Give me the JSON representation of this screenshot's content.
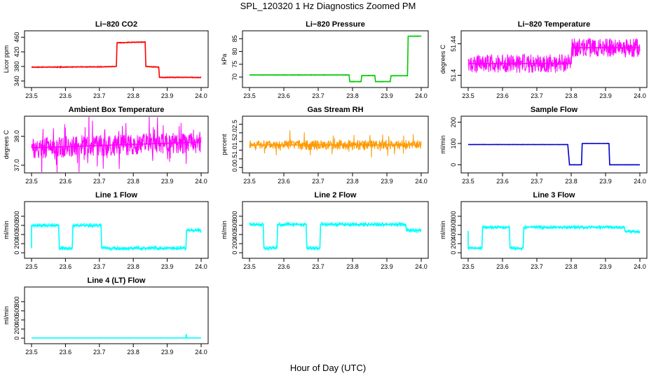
{
  "title": "SPL_120320  1 Hz Diagnostics Zoomed PM",
  "x_axis_title": "Hour of Day (UTC)",
  "colors": {
    "red": "#ff0000",
    "green": "#00cc00",
    "magenta": "#ff00ff",
    "orange": "#ff9900",
    "blue": "#0000cc",
    "cyan": "#00ffff"
  },
  "chart_data": [
    {
      "type": "line",
      "title": "Li−820 CO2",
      "ylabel": "Licor ppm",
      "color": "#ff0000",
      "xlim": [
        23.5,
        24.0
      ],
      "ylim": [
        330,
        470
      ],
      "xticks": [
        "23.5",
        "23.6",
        "23.7",
        "23.8",
        "23.9",
        "24.0"
      ],
      "yticks": [
        340,
        380,
        420,
        460
      ],
      "x": [
        23.5,
        23.71,
        23.75,
        23.752,
        23.835,
        23.837,
        23.875,
        23.877,
        24.0
      ],
      "y": [
        378,
        379,
        380,
        445,
        447,
        380,
        378,
        350,
        350
      ]
    },
    {
      "type": "line",
      "title": "Li−820 Pressure",
      "ylabel": "kPa",
      "color": "#00cc00",
      "xlim": [
        23.5,
        24.0
      ],
      "ylim": [
        67,
        87
      ],
      "xticks": [
        "23.5",
        "23.6",
        "23.7",
        "23.8",
        "23.9",
        "24.0"
      ],
      "yticks": [
        70,
        75,
        80,
        85
      ],
      "x": [
        23.5,
        23.79,
        23.792,
        23.825,
        23.827,
        23.865,
        23.867,
        23.91,
        23.912,
        23.96,
        23.962,
        24.0
      ],
      "y": [
        70.8,
        70.8,
        68.2,
        68.2,
        70.6,
        70.6,
        68.2,
        68.2,
        70.5,
        70.5,
        86,
        86
      ]
    },
    {
      "type": "line",
      "title": "Li−820 Temperature",
      "ylabel": "degrees C",
      "color": "#ff00ff",
      "xlim": [
        23.5,
        24.0
      ],
      "ylim": [
        51.388,
        51.453
      ],
      "xticks": [
        "23.5",
        "23.6",
        "23.7",
        "23.8",
        "23.9",
        "24.0"
      ],
      "yticks": [
        51.4,
        51.44
      ],
      "x": [
        23.5,
        23.8,
        23.802,
        24.0
      ],
      "y": [
        51.415,
        51.415,
        51.435,
        51.435
      ]
    },
    {
      "type": "line",
      "title": "Ambient Box Temperature",
      "ylabel": "degrees C",
      "color": "#ff00ff",
      "xlim": [
        23.5,
        24.0
      ],
      "ylim": [
        36.83,
        38.6
      ],
      "xticks": [
        "23.5",
        "23.6",
        "23.7",
        "23.8",
        "23.9",
        "24.0"
      ],
      "yticks": [
        37.0,
        38.0
      ],
      "x": [
        23.5,
        23.75,
        24.0
      ],
      "y": [
        37.6,
        37.7,
        37.8
      ]
    },
    {
      "type": "line",
      "title": "Gas Stream RH",
      "ylabel": "percent",
      "color": "#ff9900",
      "xlim": [
        23.5,
        24.0
      ],
      "ylim": [
        -0.15,
        2.8
      ],
      "xticks": [
        "23.5",
        "23.6",
        "23.7",
        "23.8",
        "23.9",
        "24.0"
      ],
      "yticks": [
        0.0,
        0.5,
        1.0,
        1.5,
        2.0,
        2.5
      ],
      "x": [
        23.5,
        23.75,
        24.0
      ],
      "y": [
        1.3,
        1.3,
        1.3
      ]
    },
    {
      "type": "line",
      "title": "Sample Flow",
      "ylabel": "ml/min",
      "color": "#0000cc",
      "xlim": [
        23.5,
        24.0
      ],
      "ylim": [
        -25,
        215
      ],
      "xticks": [
        "23.5",
        "23.6",
        "23.7",
        "23.8",
        "23.9",
        "24.0"
      ],
      "yticks": [
        0,
        100,
        200
      ],
      "x": [
        23.5,
        23.79,
        23.795,
        23.83,
        23.832,
        23.91,
        23.912,
        24.0
      ],
      "y": [
        95,
        95,
        0,
        0,
        100,
        100,
        0,
        0
      ]
    },
    {
      "type": "line",
      "title": "Line 1 Flow",
      "ylabel": "ml/min",
      "color": "#00ffff",
      "xlim": [
        23.5,
        24.0
      ],
      "ylim": [
        -60,
        1060
      ],
      "xticks": [
        "23.5",
        "23.6",
        "23.7",
        "23.8",
        "23.9",
        "24.0"
      ],
      "yticks": [
        0,
        200,
        400,
        600,
        800
      ],
      "x": [
        23.5,
        23.5,
        23.58,
        23.582,
        23.62,
        23.622,
        23.705,
        23.707,
        23.955,
        23.957,
        24.0
      ],
      "y": [
        100,
        600,
        600,
        100,
        100,
        600,
        600,
        100,
        100,
        490,
        490
      ]
    },
    {
      "type": "line",
      "title": "Line 2 Flow",
      "ylabel": "ml/min",
      "color": "#00ffff",
      "xlim": [
        23.5,
        24.0
      ],
      "ylim": [
        -60,
        1060
      ],
      "xticks": [
        "23.5",
        "23.6",
        "23.7",
        "23.8",
        "23.9",
        "24.0"
      ],
      "yticks": [
        0,
        200,
        400,
        600,
        800
      ],
      "x": [
        23.5,
        23.54,
        23.542,
        23.58,
        23.582,
        23.665,
        23.667,
        23.705,
        23.707,
        23.955,
        23.957,
        24.0
      ],
      "y": [
        620,
        620,
        100,
        100,
        620,
        620,
        100,
        100,
        620,
        620,
        490,
        490
      ]
    },
    {
      "type": "line",
      "title": "Line 3 Flow",
      "ylabel": "ml/min",
      "color": "#00ffff",
      "xlim": [
        23.5,
        24.0
      ],
      "ylim": [
        -60,
        1060
      ],
      "xticks": [
        "23.5",
        "23.6",
        "23.7",
        "23.8",
        "23.9",
        "24.0"
      ],
      "yticks": [
        0,
        200,
        400,
        600,
        800
      ],
      "x": [
        23.5,
        23.5,
        23.54,
        23.542,
        23.62,
        23.622,
        23.66,
        23.662,
        23.955,
        23.957,
        24.0
      ],
      "y": [
        480,
        100,
        100,
        560,
        560,
        100,
        100,
        560,
        560,
        470,
        470
      ]
    },
    {
      "type": "line",
      "title": "Line 4 (LT) Flow",
      "ylabel": "ml/min",
      "color": "#00ffff",
      "xlim": [
        23.5,
        24.0
      ],
      "ylim": [
        -60,
        1060
      ],
      "xticks": [
        "23.5",
        "23.6",
        "23.7",
        "23.8",
        "23.9",
        "24.0"
      ],
      "yticks": [
        0,
        200,
        400,
        600,
        800
      ],
      "x": [
        23.5,
        23.955,
        23.956,
        23.957,
        24.0
      ],
      "y": [
        5,
        5,
        90,
        5,
        5
      ]
    }
  ]
}
